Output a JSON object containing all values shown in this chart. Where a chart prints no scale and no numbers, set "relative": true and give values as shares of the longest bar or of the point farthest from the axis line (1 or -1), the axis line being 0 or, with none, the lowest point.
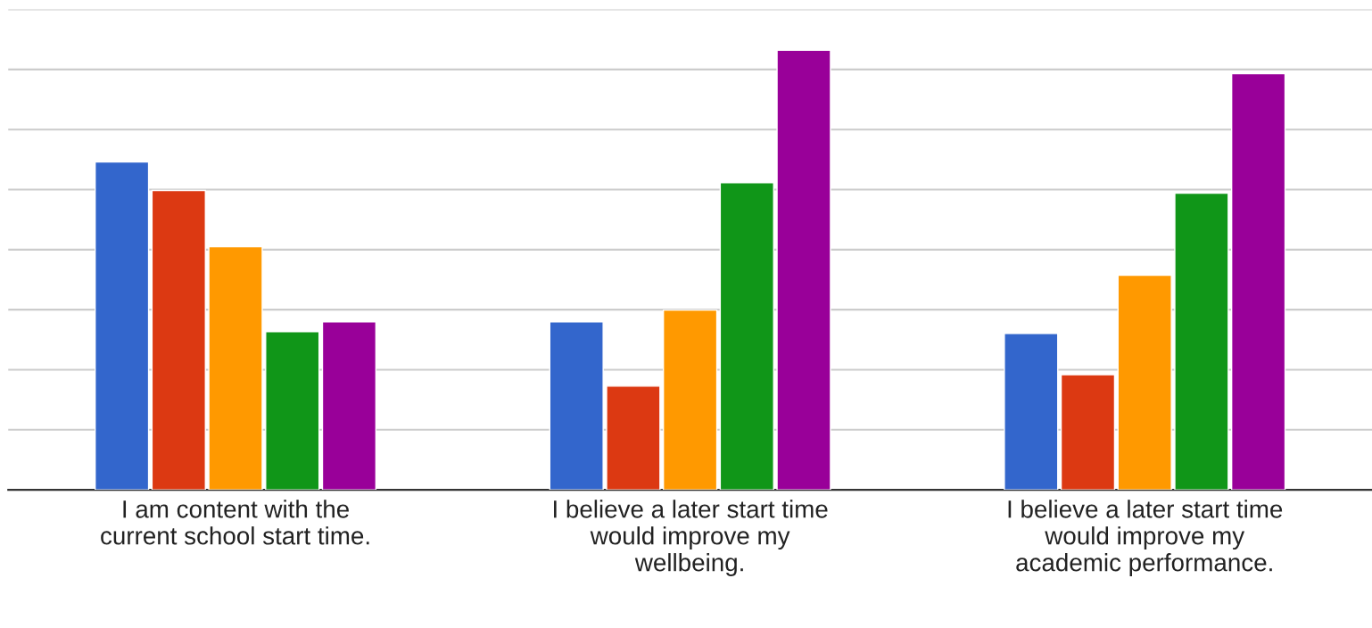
{
  "chart_data": {
    "type": "bar",
    "relative": true,
    "grid": "y",
    "categories": [
      "I am content with the\ncurrent school start time.",
      "I believe a later start time\nwould improve my\nwellbeing.",
      "I believe a later start time\nwould improve my\nacademic performance."
    ],
    "series": [
      {
        "color": "#3366cc",
        "values": [
          0.746,
          0.382,
          0.356
        ]
      },
      {
        "color": "#dc3912",
        "values": [
          0.681,
          0.236,
          0.262
        ]
      },
      {
        "color": "#ff9900",
        "values": [
          0.553,
          0.409,
          0.488
        ]
      },
      {
        "color": "#109618",
        "values": [
          0.36,
          0.699,
          0.675
        ]
      },
      {
        "color": "#990099",
        "values": [
          0.382,
          1,
          0.947
        ]
      }
    ]
  }
}
